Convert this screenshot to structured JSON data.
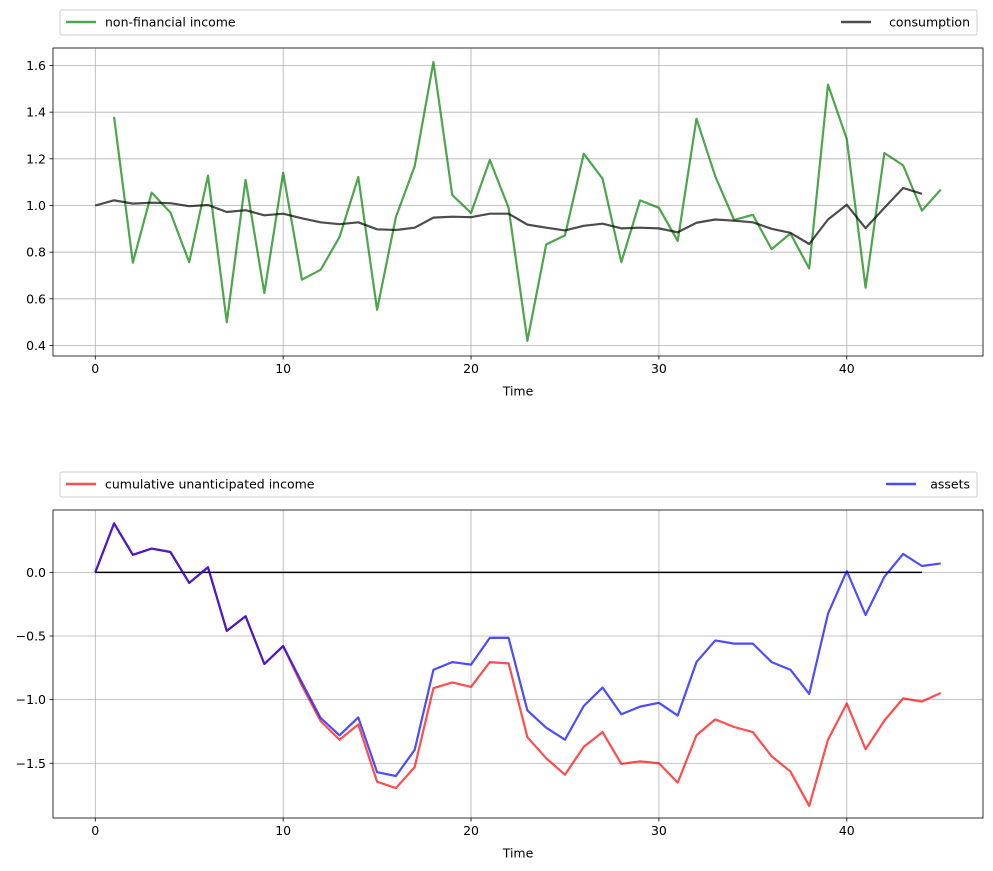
{
  "chart_data": [
    {
      "type": "line",
      "xlabel": "Time",
      "xlim": [
        -2.25,
        47.25
      ],
      "ylim": [
        0.355,
        1.675
      ],
      "x_ticks": [
        0,
        10,
        20,
        30,
        40
      ],
      "x_tick_labels": [
        "0",
        "10",
        "20",
        "30",
        "40"
      ],
      "y_ticks": [
        0.4,
        0.6,
        0.8,
        1.0,
        1.2,
        1.4,
        1.6
      ],
      "y_tick_labels": [
        "0.4",
        "0.6",
        "0.8",
        "1.0",
        "1.2",
        "1.4",
        "1.6"
      ],
      "grid": true,
      "legend_placement": "above plot, expanded",
      "series": [
        {
          "name": "non-financial income",
          "color": "#008000",
          "x_start": 1,
          "values": [
            1.38,
            0.755,
            1.055,
            0.97,
            0.757,
            1.128,
            0.5,
            1.11,
            0.625,
            1.14,
            0.682,
            0.725,
            0.865,
            1.122,
            0.553,
            0.95,
            1.168,
            1.615,
            1.045,
            0.968,
            1.195,
            0.99,
            0.42,
            0.833,
            0.872,
            1.222,
            1.115,
            0.757,
            1.022,
            0.99,
            0.848,
            1.372,
            1.125,
            0.938,
            0.96,
            0.813,
            0.88,
            0.73,
            1.518,
            1.285,
            0.648,
            1.225,
            1.172,
            0.978,
            1.068
          ]
        },
        {
          "name": "consumption",
          "color": "#000000",
          "x_start": 0,
          "values": [
            1.0,
            1.022,
            1.008,
            1.012,
            1.01,
            0.997,
            1.002,
            0.972,
            0.98,
            0.958,
            0.965,
            0.945,
            0.928,
            0.92,
            0.928,
            0.898,
            0.895,
            0.905,
            0.948,
            0.952,
            0.95,
            0.965,
            0.965,
            0.918,
            0.905,
            0.893,
            0.913,
            0.922,
            0.902,
            0.905,
            0.902,
            0.885,
            0.926,
            0.94,
            0.935,
            0.928,
            0.9,
            0.883,
            0.835,
            0.94,
            1.003,
            0.903,
            0.99,
            1.075,
            1.05
          ]
        }
      ]
    },
    {
      "type": "line",
      "xlabel": "Time",
      "xlim": [
        -2.25,
        47.25
      ],
      "ylim": [
        -1.93,
        0.49
      ],
      "x_ticks": [
        0,
        10,
        20,
        30,
        40
      ],
      "x_tick_labels": [
        "0",
        "10",
        "20",
        "30",
        "40"
      ],
      "y_ticks": [
        -1.5,
        -1.0,
        -0.5,
        0.0
      ],
      "y_tick_labels": [
        "−1.5",
        "−1.0",
        "−0.5",
        "0.0"
      ],
      "grid": true,
      "legend_placement": "above plot, expanded",
      "zero_line": {
        "color": "#000000",
        "x": [
          0,
          44
        ],
        "y": 0
      },
      "series": [
        {
          "name": "cumulative unanticipated income",
          "color": "#ff0000",
          "x_start": 0,
          "values": [
            0.0,
            0.385,
            0.138,
            0.187,
            0.16,
            -0.083,
            0.04,
            -0.46,
            -0.345,
            -0.72,
            -0.58,
            -0.89,
            -1.17,
            -1.315,
            -1.195,
            -1.645,
            -1.695,
            -1.53,
            -0.91,
            -0.865,
            -0.9,
            -0.705,
            -0.715,
            -1.295,
            -1.46,
            -1.59,
            -1.37,
            -1.255,
            -1.505,
            -1.485,
            -1.5,
            -1.652,
            -1.28,
            -1.155,
            -1.215,
            -1.255,
            -1.445,
            -1.565,
            -1.835,
            -1.315,
            -1.03,
            -1.39,
            -1.165,
            -0.99,
            -1.015,
            -0.948
          ]
        },
        {
          "name": "assets",
          "color": "#0000ff",
          "x_start": 0,
          "values": [
            0.0,
            0.385,
            0.138,
            0.187,
            0.16,
            -0.083,
            0.04,
            -0.46,
            -0.345,
            -0.72,
            -0.578,
            -0.865,
            -1.145,
            -1.28,
            -1.14,
            -1.57,
            -1.6,
            -1.395,
            -0.765,
            -0.705,
            -0.725,
            -0.515,
            -0.515,
            -1.085,
            -1.22,
            -1.315,
            -1.05,
            -0.905,
            -1.115,
            -1.055,
            -1.025,
            -1.125,
            -0.705,
            -0.535,
            -0.56,
            -0.56,
            -0.705,
            -0.765,
            -0.955,
            -0.325,
            0.01,
            -0.335,
            -0.035,
            0.145,
            0.05,
            0.07
          ]
        }
      ]
    }
  ]
}
